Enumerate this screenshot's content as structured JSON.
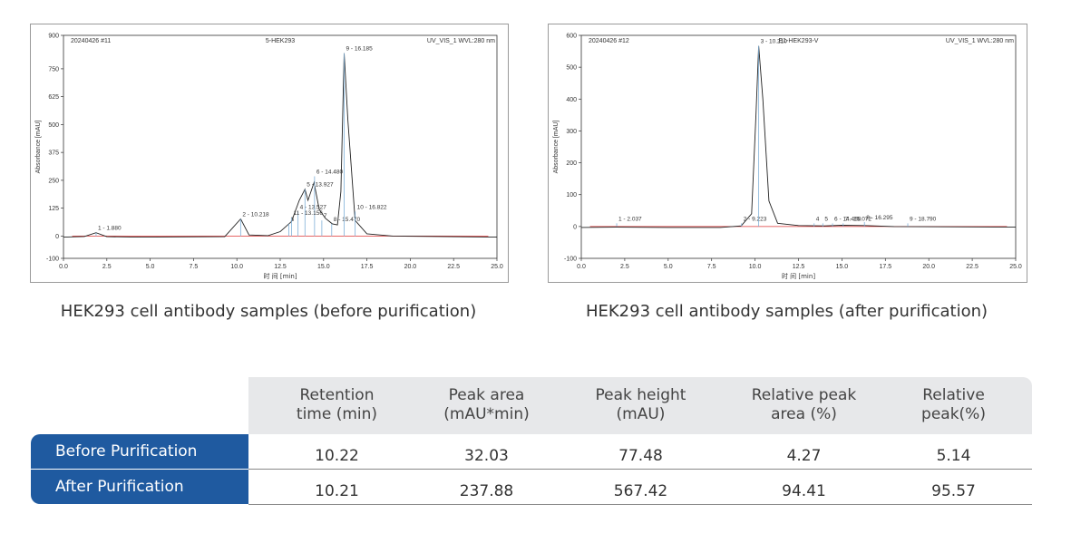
{
  "chart_data": [
    {
      "type": "line",
      "header_left": "20240426 #11",
      "title": "5-HEK293",
      "header_right": "UV_VIS_1 WVL:280 nm",
      "xlabel": "时 间 [min]",
      "ylabel": "Absorbance [mAU]",
      "xlim": [
        0,
        25
      ],
      "ylim": [
        -100,
        900
      ],
      "xticks": [
        0.0,
        2.5,
        5.0,
        7.5,
        10.0,
        12.5,
        15.0,
        17.5,
        20.0,
        22.5,
        25.0
      ],
      "xtick_labels": [
        "0.0",
        "2.5",
        "5.0",
        "7.5",
        "10.0",
        "12.5",
        "15.0",
        "17.5",
        "20.0",
        "22.5",
        "25.0"
      ],
      "yticks": [
        -100,
        0,
        125,
        250,
        375,
        500,
        625,
        750,
        900
      ],
      "ytick_labels": [
        "-100",
        "0",
        "125",
        "250",
        "375",
        "500",
        "625",
        "750",
        "900"
      ],
      "series": [
        {
          "values": [
            [
              0,
              -5
            ],
            [
              1.2,
              -2
            ],
            [
              1.88,
              15
            ],
            [
              2.5,
              -3
            ],
            [
              4.3,
              -5
            ],
            [
              9.3,
              -3
            ],
            [
              10.22,
              77
            ],
            [
              10.7,
              5
            ],
            [
              11.8,
              2
            ],
            [
              12.5,
              20
            ],
            [
              13.15,
              65
            ],
            [
              13.6,
              160
            ],
            [
              13.93,
              210
            ],
            [
              14.1,
              160
            ],
            [
              14.45,
              240
            ],
            [
              14.75,
              120
            ],
            [
              15.1,
              80
            ],
            [
              15.5,
              55
            ],
            [
              15.8,
              50
            ],
            [
              16.0,
              200
            ],
            [
              16.185,
              820
            ],
            [
              16.4,
              520
            ],
            [
              16.822,
              70
            ],
            [
              17.5,
              10
            ],
            [
              19,
              0
            ],
            [
              25,
              -5
            ]
          ]
        }
      ],
      "peaks": [
        {
          "label": "1 - 1.880",
          "x": 1.88,
          "y": 15
        },
        {
          "label": "2 - 10.218",
          "x": 10.218,
          "y": 77
        },
        {
          "label": "3",
          "x": 13.0,
          "y": 55
        },
        {
          "label": "4 - 13.527",
          "x": 13.527,
          "y": 110
        },
        {
          "label": "5 - 13.927",
          "x": 13.927,
          "y": 210
        },
        {
          "label": "6 - 14.480",
          "x": 14.48,
          "y": 268
        },
        {
          "label": "7",
          "x": 14.9,
          "y": 70
        },
        {
          "label": "8 - 15.470",
          "x": 15.47,
          "y": 55
        },
        {
          "label": "9 - 16.185",
          "x": 16.185,
          "y": 820
        },
        {
          "label": "10 - 16.822",
          "x": 16.822,
          "y": 110
        },
        {
          "label": "11 - 13.156",
          "x": 13.156,
          "y": 82
        }
      ]
    },
    {
      "type": "line",
      "header_left": "20240426 #12",
      "title": "E1-HEK293-V",
      "header_right": "UV_VIS_1 WVL:280 nm",
      "xlabel": "时 间 [min]",
      "ylabel": "Absorbance [mAU]",
      "xlim": [
        0,
        25
      ],
      "ylim": [
        -100,
        600
      ],
      "xticks": [
        0.0,
        2.5,
        5.0,
        7.5,
        10.0,
        12.5,
        15.0,
        17.5,
        20.0,
        22.5,
        25.0
      ],
      "xtick_labels": [
        "0.0",
        "2.5",
        "5.0",
        "7.5",
        "10.0",
        "12.5",
        "15.0",
        "17.5",
        "20.0",
        "22.5",
        "25.0"
      ],
      "yticks": [
        -100,
        0,
        100,
        200,
        300,
        400,
        500,
        600
      ],
      "ytick_labels": [
        "-100",
        "0",
        "100",
        "200",
        "300",
        "400",
        "500",
        "600"
      ],
      "series": [
        {
          "values": [
            [
              0,
              -3
            ],
            [
              2,
              -2
            ],
            [
              5,
              -3
            ],
            [
              8,
              -3
            ],
            [
              9.2,
              2
            ],
            [
              9.8,
              40
            ],
            [
              10.05,
              350
            ],
            [
              10.21,
              567
            ],
            [
              10.45,
              400
            ],
            [
              10.8,
              80
            ],
            [
              11.3,
              10
            ],
            [
              12.5,
              3
            ],
            [
              14,
              2
            ],
            [
              15,
              4
            ],
            [
              16.3,
              3
            ],
            [
              18,
              0
            ],
            [
              25,
              -2
            ]
          ]
        }
      ],
      "peaks": [
        {
          "label": "1 - 2.037",
          "x": 2.037,
          "y": 10
        },
        {
          "label": "2 - 9.223",
          "x": 9.223,
          "y": 10
        },
        {
          "label": "3 - 10.210",
          "x": 10.21,
          "y": 567
        },
        {
          "label": "4",
          "x": 13.4,
          "y": 10
        },
        {
          "label": "5",
          "x": 13.9,
          "y": 10
        },
        {
          "label": "6 - 14.460",
          "x": 14.46,
          "y": 10
        },
        {
          "label": "7 - 15.072",
          "x": 15.072,
          "y": 10
        },
        {
          "label": "8 - 16.295",
          "x": 16.295,
          "y": 14
        },
        {
          "label": "9 - 18.790",
          "x": 18.79,
          "y": 10
        }
      ]
    }
  ],
  "captions": {
    "left": "HEK293 cell antibody samples (before purification)",
    "right": "HEK293 cell antibody samples (after purification)"
  },
  "table": {
    "headers": [
      "Retention\ntime (min)",
      "Peak area\n(mAU*min)",
      "Peak height\n(mAU)",
      "Relative peak\narea (%)",
      "Relative\npeak(%)"
    ],
    "rows": [
      {
        "label": "Before Purification",
        "values": [
          "10.22",
          "32.03",
          "77.48",
          "4.27",
          "5.14"
        ]
      },
      {
        "label": "After Purification",
        "values": [
          "10.21",
          "237.88",
          "567.42",
          "94.41",
          "95.57"
        ]
      }
    ]
  }
}
